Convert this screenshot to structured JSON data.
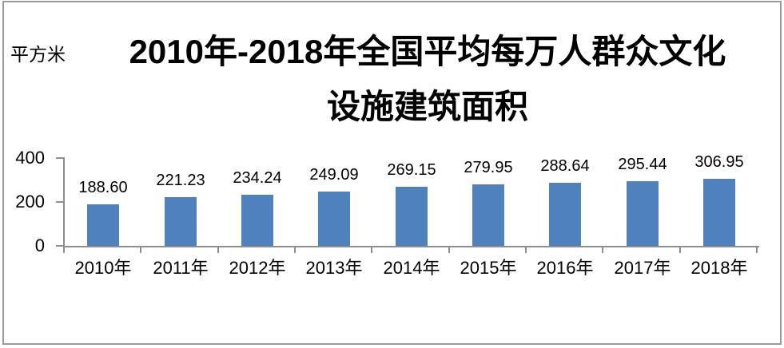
{
  "unit_label": "平方米",
  "title_lines": {
    "line1": "2010年-2018年全国平均每万人群众文化",
    "line2": "设施建筑面积"
  },
  "chart_data": {
    "type": "bar",
    "title": "2010年-2018年全国平均每万人群众文化设施建筑面积",
    "unit": "平方米",
    "xlabel": "",
    "ylabel": "平方米",
    "categories": [
      "2010年",
      "2011年",
      "2012年",
      "2013年",
      "2014年",
      "2015年",
      "2016年",
      "2017年",
      "2018年"
    ],
    "values": [
      188.6,
      221.23,
      234.24,
      249.09,
      269.15,
      279.95,
      288.64,
      295.44,
      306.95
    ],
    "value_labels": [
      "188.60",
      "221.23",
      "234.24",
      "249.09",
      "269.15",
      "279.95",
      "288.64",
      "295.44",
      "306.95"
    ],
    "y_ticks": [
      0,
      200,
      400
    ],
    "ylim": [
      0,
      400
    ],
    "grid": false,
    "legend": "none",
    "bar_color": "#4f81bd",
    "axis_color": "#8e8e8e",
    "text_color": "#000000"
  }
}
